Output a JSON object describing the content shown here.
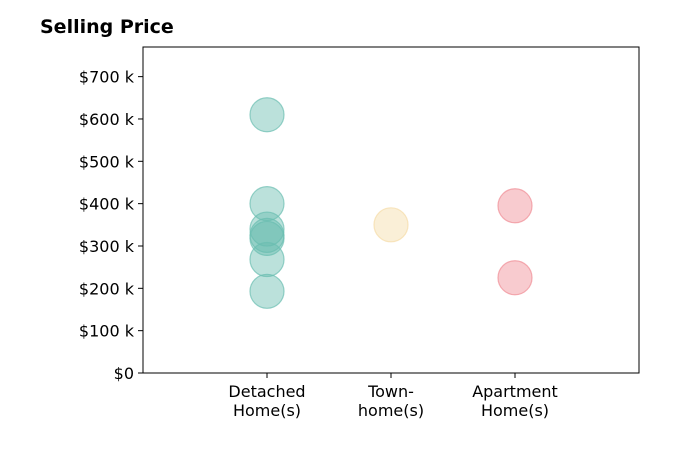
{
  "chart_data": {
    "type": "scatter",
    "title": "Selling Price",
    "xlabel": "",
    "ylabel": "",
    "categories": [
      "Detached\nHome(s)",
      "Town-\nhome(s)",
      "Apartment\nHome(s)"
    ],
    "xlim": [
      0,
      4
    ],
    "ylim": [
      0,
      770
    ],
    "yticks": [
      0,
      100,
      200,
      300,
      400,
      500,
      600,
      700
    ],
    "ytick_labels": [
      "$0",
      "$100 k",
      "$200 k",
      "$300 k",
      "$400 k",
      "$500 k",
      "$600 k",
      "$700 k"
    ],
    "grid": false,
    "series": [
      {
        "category_index": 1,
        "color": "#69bdb0",
        "values": [
          610,
          400,
          340,
          325,
          318,
          268,
          193
        ]
      },
      {
        "category_index": 2,
        "color": "#f5dba6",
        "values": [
          350
        ]
      },
      {
        "category_index": 3,
        "color": "#f08b94",
        "values": [
          395,
          225
        ]
      }
    ]
  }
}
